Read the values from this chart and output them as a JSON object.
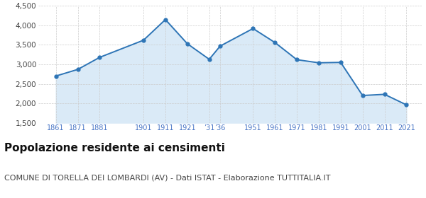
{
  "years": [
    1861,
    1871,
    1881,
    1901,
    1911,
    1921,
    1931,
    1936,
    1951,
    1961,
    1971,
    1981,
    1991,
    2001,
    2011,
    2021
  ],
  "population": [
    2700,
    2870,
    3180,
    3620,
    4150,
    3530,
    3130,
    3470,
    3920,
    3560,
    3120,
    3040,
    3050,
    2200,
    2230,
    1960
  ],
  "ylim": [
    1500,
    4500
  ],
  "yticks": [
    1500,
    2000,
    2500,
    3000,
    3500,
    4000,
    4500
  ],
  "line_color": "#2e75b6",
  "fill_color": "#daeaf7",
  "marker": "o",
  "marker_size": 3.5,
  "title": "Popolazione residente ai censimenti",
  "subtitle": "COMUNE DI TORELLA DEI LOMBARDI (AV) - Dati ISTAT - Elaborazione TUTTITALIA.IT",
  "title_fontsize": 11,
  "subtitle_fontsize": 8,
  "bg_color": "#ffffff",
  "grid_color": "#cccccc",
  "x_tick_positions": [
    1861,
    1871,
    1881,
    1901,
    1911,
    1921,
    1931,
    1936,
    1951,
    1961,
    1971,
    1981,
    1991,
    2001,
    2011,
    2021
  ],
  "x_tick_labels": [
    "1861",
    "1871",
    "1881",
    "1901",
    "1911",
    "1921",
    "’31",
    "’36",
    "1951",
    "1961",
    "1971",
    "1981",
    "1991",
    "2001",
    "2011",
    "2021"
  ],
  "xlim_left": 1853,
  "xlim_right": 2028
}
